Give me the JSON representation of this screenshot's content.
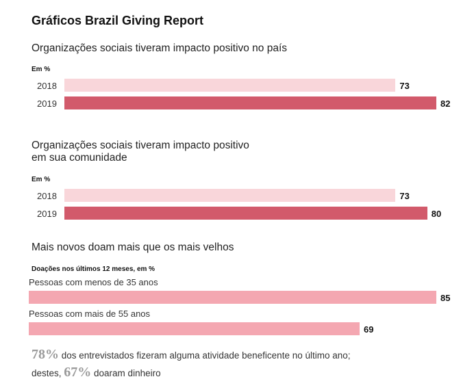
{
  "header": {
    "title": "Gráficos Brazil Giving Report"
  },
  "chart_data": [
    {
      "type": "bar",
      "title": "Organizações sociais tiveram impacto positivo no país",
      "unit_label": "Em %",
      "categories": [
        "2018",
        "2019"
      ],
      "values": [
        73,
        82
      ],
      "colors": [
        "#f9d6da",
        "#d25a6b"
      ],
      "xlim": [
        0,
        82
      ]
    },
    {
      "type": "bar",
      "title_lines": [
        "Organizações sociais tiveram impacto positivo",
        "em sua comunidade"
      ],
      "unit_label": "Em %",
      "categories": [
        "2018",
        "2019"
      ],
      "values": [
        73,
        80
      ],
      "colors": [
        "#f9d6da",
        "#d25a6b"
      ],
      "xlim": [
        0,
        82
      ]
    },
    {
      "type": "bar",
      "title": "Mais novos doam mais que os mais velhos",
      "unit_label": "Doações nos últimos 12 meses, em %",
      "categories": [
        "Pessoas com menos de 35 anos",
        "Pessoas com mais de 55 anos"
      ],
      "values": [
        85,
        69
      ],
      "colors": [
        "#f4a7b1",
        "#f4a7b1"
      ],
      "xlim": [
        0,
        85
      ]
    }
  ],
  "footnote": {
    "pct1": "78%",
    "text1": " dos entrevistados fizeram alguma atividade beneficente no último ano;",
    "text2_prefix": "destes, ",
    "pct2": "67%",
    "text2_suffix": " doaram dinheiro"
  }
}
